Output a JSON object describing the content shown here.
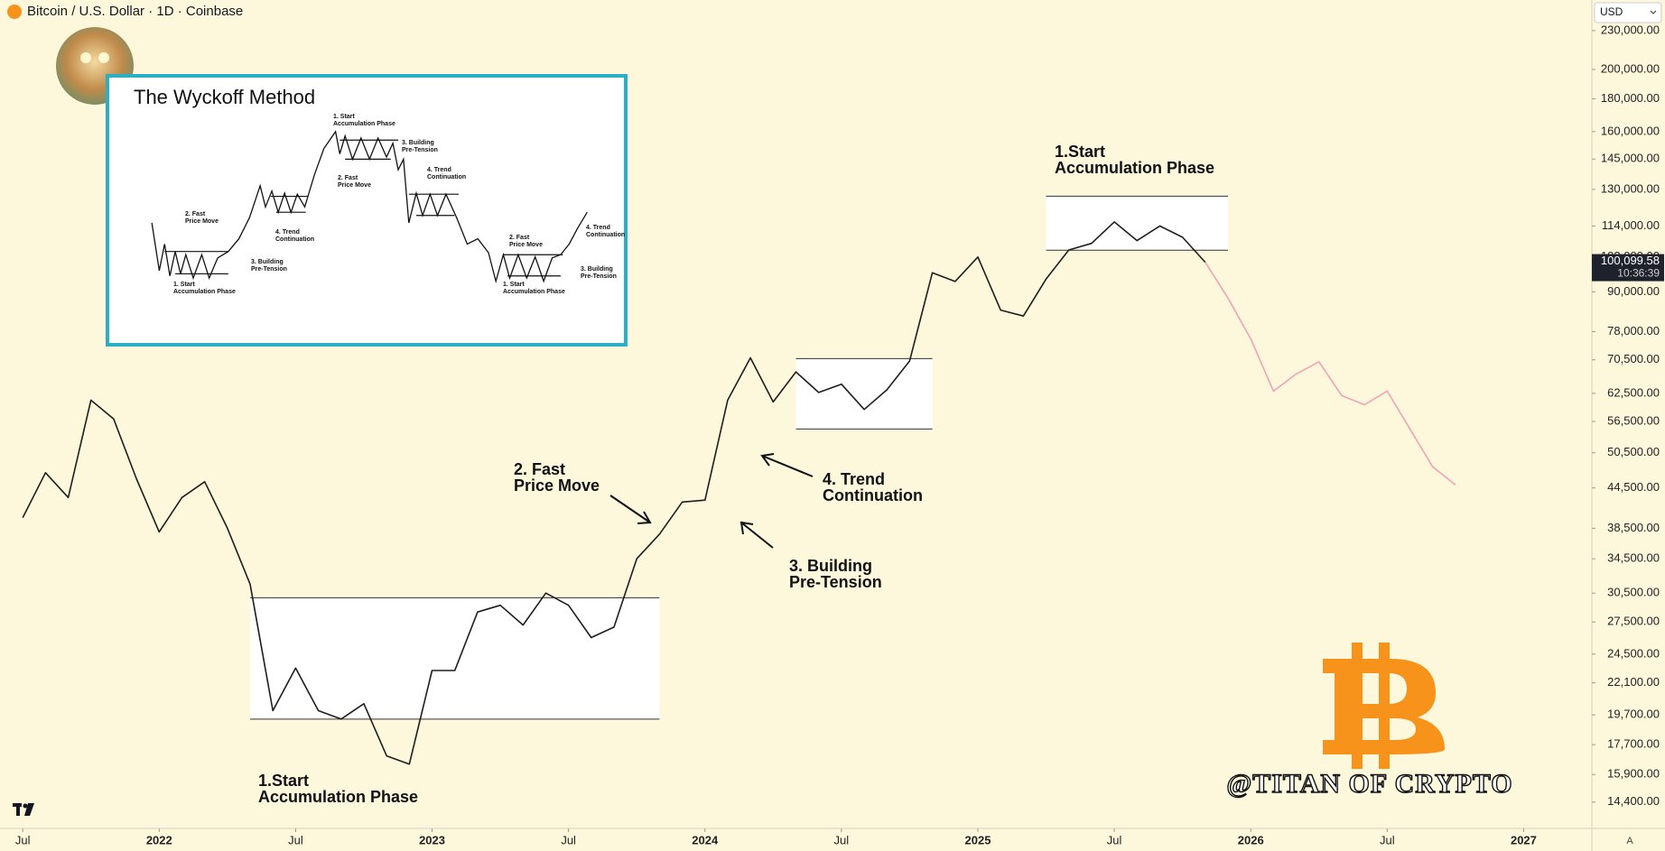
{
  "chart_data": {
    "type": "line",
    "title": "Bitcoin / U.S. Dollar · 1D · Coinbase",
    "currency": "USD",
    "axis_button": "A",
    "log_scale": true,
    "x": [
      "2021-07",
      "2021-08",
      "2021-09",
      "2021-10",
      "2021-11",
      "2021-12",
      "2022-01",
      "2022-02",
      "2022-03",
      "2022-04",
      "2022-05",
      "2022-06",
      "2022-07",
      "2022-08",
      "2022-09",
      "2022-10",
      "2022-11",
      "2022-12",
      "2023-01",
      "2023-02",
      "2023-03",
      "2023-04",
      "2023-05",
      "2023-06",
      "2023-07",
      "2023-08",
      "2023-09",
      "2023-10",
      "2023-11",
      "2023-12",
      "2024-01",
      "2024-02",
      "2024-03",
      "2024-04",
      "2024-05",
      "2024-06",
      "2024-07",
      "2024-08",
      "2024-09",
      "2024-10",
      "2024-11",
      "2024-12",
      "2025-01",
      "2025-02",
      "2025-03",
      "2025-04",
      "2025-05",
      "2025-06",
      "2025-07",
      "2025-08",
      "2025-09",
      "2025-10",
      "2025-11",
      "2025-12",
      "2026-01",
      "2026-02",
      "2026-03",
      "2026-04",
      "2026-05",
      "2026-06",
      "2026-07",
      "2026-08",
      "2026-09",
      "2026-10"
    ],
    "series": [
      {
        "color": "#1e1e1e",
        "values": [
          40000,
          47000,
          43000,
          61000,
          57000,
          46000,
          38000,
          43000,
          45500,
          38500,
          31500,
          20000,
          23300,
          20000,
          19400,
          20500,
          17000,
          16500,
          23100,
          23100,
          28500,
          29200,
          27200,
          30500,
          29200,
          26000,
          27000,
          34500,
          37700,
          42300,
          42600,
          61000,
          71000,
          60600,
          67500,
          62700,
          64600,
          59000,
          63300,
          70200,
          96400,
          93400,
          102000,
          84300,
          82500,
          94200,
          104600,
          107100,
          115700,
          108200,
          114000,
          109500,
          100099.58,
          null,
          null,
          null,
          null,
          null,
          null,
          null,
          null,
          null,
          null,
          null
        ]
      },
      {
        "color": "#f0a3b4",
        "values": [
          null,
          null,
          null,
          null,
          null,
          null,
          null,
          null,
          null,
          null,
          null,
          null,
          null,
          null,
          null,
          null,
          null,
          null,
          null,
          null,
          null,
          null,
          null,
          null,
          null,
          null,
          null,
          null,
          null,
          null,
          null,
          null,
          null,
          null,
          null,
          null,
          null,
          null,
          null,
          null,
          null,
          null,
          null,
          null,
          null,
          null,
          null,
          null,
          null,
          null,
          null,
          null,
          100099.58,
          88000,
          76000,
          63000,
          67000,
          70000,
          62000,
          60000,
          63000,
          55000,
          48000,
          45000
        ]
      }
    ],
    "last_price_label": "100,099.58",
    "countdown": "10:36:39",
    "xlim": [
      "2021-06",
      "2027-04"
    ],
    "xticks": [
      {
        "value": "2021-07",
        "label": "Jul"
      },
      {
        "value": "2022-01",
        "label": "2022"
      },
      {
        "value": "2022-07",
        "label": "Jul"
      },
      {
        "value": "2023-01",
        "label": "2023"
      },
      {
        "value": "2023-07",
        "label": "Jul"
      },
      {
        "value": "2024-01",
        "label": "2024"
      },
      {
        "value": "2024-07",
        "label": "Jul"
      },
      {
        "value": "2025-01",
        "label": "2025"
      },
      {
        "value": "2025-07",
        "label": "Jul"
      },
      {
        "value": "2026-01",
        "label": "2026"
      },
      {
        "value": "2026-07",
        "label": "Jul"
      },
      {
        "value": "2027-01",
        "label": "2027"
      }
    ],
    "ylim": [
      13100,
      256700
    ],
    "yticks": [
      {
        "value": 14400,
        "label": "14,400.00"
      },
      {
        "value": 15900,
        "label": "15,900.00"
      },
      {
        "value": 17700,
        "label": "17,700.00"
      },
      {
        "value": 19700,
        "label": "19,700.00"
      },
      {
        "value": 22100,
        "label": "22,100.00"
      },
      {
        "value": 24500,
        "label": "24,500.00"
      },
      {
        "value": 27500,
        "label": "27,500.00"
      },
      {
        "value": 30500,
        "label": "30,500.00"
      },
      {
        "value": 34500,
        "label": "34,500.00"
      },
      {
        "value": 38500,
        "label": "38,500.00"
      },
      {
        "value": 44500,
        "label": "44,500.00"
      },
      {
        "value": 50500,
        "label": "50,500.00"
      },
      {
        "value": 56500,
        "label": "56,500.00"
      },
      {
        "value": 62500,
        "label": "62,500.00"
      },
      {
        "value": 70500,
        "label": "70,500.00"
      },
      {
        "value": 78000,
        "label": "78,000.00"
      },
      {
        "value": 90000,
        "label": "90,000.00"
      },
      {
        "value": 102000,
        "label": "102,000.00"
      },
      {
        "value": 114000,
        "label": "114,000.00"
      },
      {
        "value": 130000,
        "label": "130,000.00"
      },
      {
        "value": 145000,
        "label": "145,000.00"
      },
      {
        "value": 160000,
        "label": "160,000.00"
      },
      {
        "value": 180000,
        "label": "180,000.00"
      },
      {
        "value": 200000,
        "label": "200,000.00"
      },
      {
        "value": 230000,
        "label": "230,000.00"
      }
    ],
    "boxes": [
      {
        "x": [
          "2022-05",
          "2023-11"
        ],
        "y": [
          19400,
          30000
        ]
      },
      {
        "x": [
          "2024-05",
          "2024-11"
        ],
        "y": [
          55000,
          70800
        ]
      },
      {
        "x": [
          "2025-04",
          "2025-12"
        ],
        "y": [
          104500,
          126900
        ]
      }
    ],
    "annotations": [
      {
        "lines": [
          "1.Start",
          "Accumulation Phase"
        ]
      },
      {
        "lines": [
          "2. Fast",
          "Price Move"
        ]
      },
      {
        "lines": [
          "3. Building",
          "Pre-Tension"
        ]
      },
      {
        "lines": [
          "4. Trend",
          "Continuation"
        ]
      },
      {
        "lines": [
          "1.Start",
          "Accumulation Phase"
        ]
      }
    ],
    "watermark": "@TITAN OF CRYPTO",
    "inset": {
      "title": "The Wyckoff Method",
      "labels": [
        [
          "1. Start",
          "Accumulation Phase"
        ],
        [
          "2. Fast",
          "Price Move"
        ],
        [
          "3. Building",
          "Pre-Tension"
        ],
        [
          "4. Trend",
          "Continuation"
        ],
        [
          "1. Start",
          "Accumulation Phase"
        ],
        [
          "2. Fast",
          "Price Move"
        ],
        [
          "3. Building",
          "Pre-Tension"
        ],
        [
          "4. Trend",
          "Continuation"
        ],
        [
          "2. Fast",
          "Price Move"
        ],
        [
          "1. Start",
          "Accumulation Phase"
        ],
        [
          "4. Trend",
          "Continuation"
        ],
        [
          "3. Building",
          "Pre-Tension"
        ]
      ]
    }
  }
}
